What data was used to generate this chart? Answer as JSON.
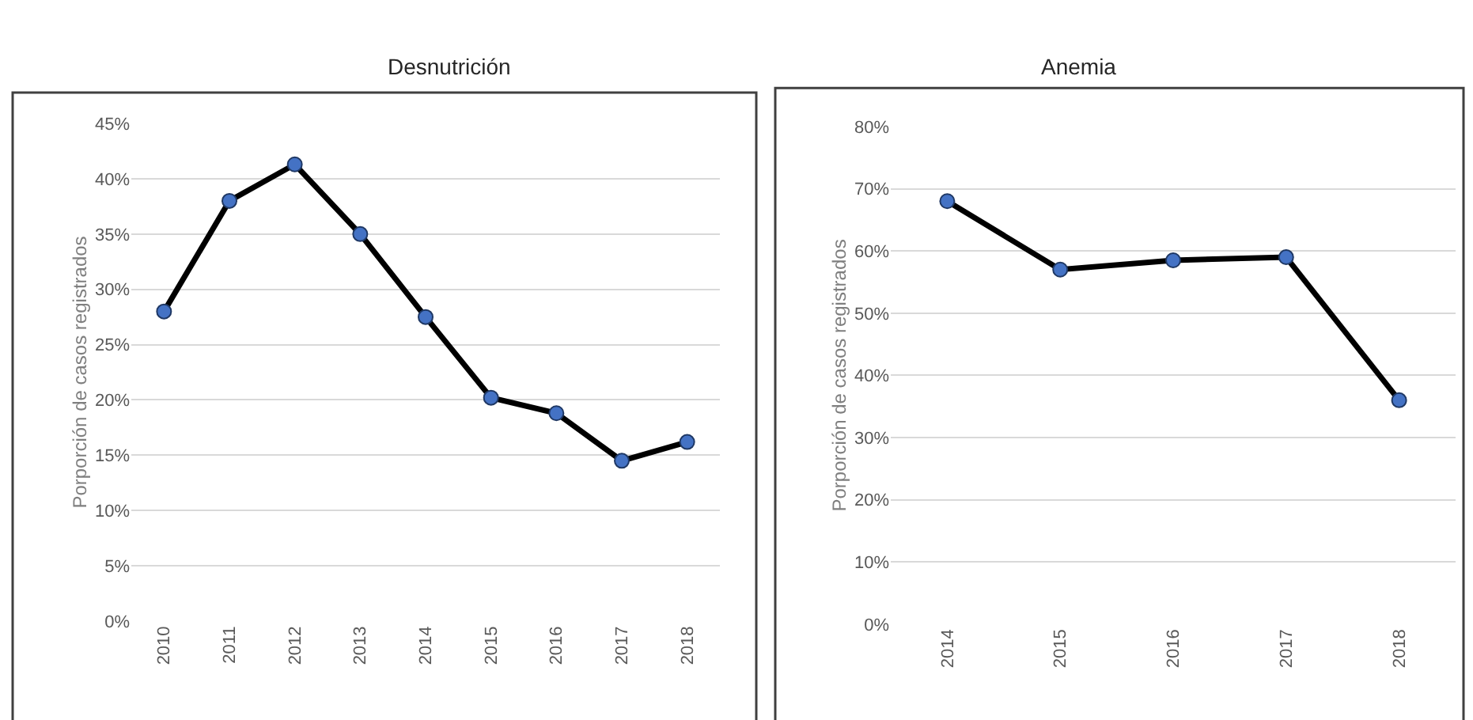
{
  "chart_data": [
    {
      "type": "line",
      "title": "Desnutrición",
      "ylabel": "Porporción de casos registrados",
      "categories": [
        "2010",
        "2011",
        "2012",
        "2013",
        "2014",
        "2015",
        "2016",
        "2017",
        "2018"
      ],
      "series": [
        {
          "color": "#000000",
          "values": [
            28,
            38,
            41.3,
            35,
            27.5,
            20.2,
            18.8,
            14.5,
            16.2
          ]
        }
      ],
      "ylim": [
        0,
        45
      ],
      "yticks": [
        {
          "value": 0,
          "label": "0%"
        },
        {
          "value": 5,
          "label": "5%"
        },
        {
          "value": 10,
          "label": "10%"
        },
        {
          "value": 15,
          "label": "15%"
        },
        {
          "value": 20,
          "label": "20%"
        },
        {
          "value": 25,
          "label": "25%"
        },
        {
          "value": 30,
          "label": "30%"
        },
        {
          "value": 35,
          "label": "35%"
        },
        {
          "value": 40,
          "label": "40%"
        },
        {
          "value": 45,
          "label": "45%"
        }
      ],
      "grid": "y",
      "marker": "circle",
      "line_style": "solid"
    },
    {
      "type": "line",
      "title": "Anemia",
      "ylabel": "Porporción de casos registrados",
      "categories": [
        "2014",
        "2015",
        "2016",
        "2017",
        "2018"
      ],
      "series": [
        {
          "color": "#000000",
          "values": [
            68,
            57,
            58.5,
            59,
            36
          ]
        }
      ],
      "ylim": [
        0,
        80
      ],
      "yticks": [
        {
          "value": 0,
          "label": "0%"
        },
        {
          "value": 10,
          "label": "10%"
        },
        {
          "value": 20,
          "label": "20%"
        },
        {
          "value": 30,
          "label": "30%"
        },
        {
          "value": 40,
          "label": "40%"
        },
        {
          "value": 50,
          "label": "50%"
        },
        {
          "value": 60,
          "label": "60%"
        },
        {
          "value": 70,
          "label": "70%"
        },
        {
          "value": 80,
          "label": "80%"
        }
      ],
      "grid": "y",
      "marker": "circle",
      "line_style": "solid"
    }
  ]
}
